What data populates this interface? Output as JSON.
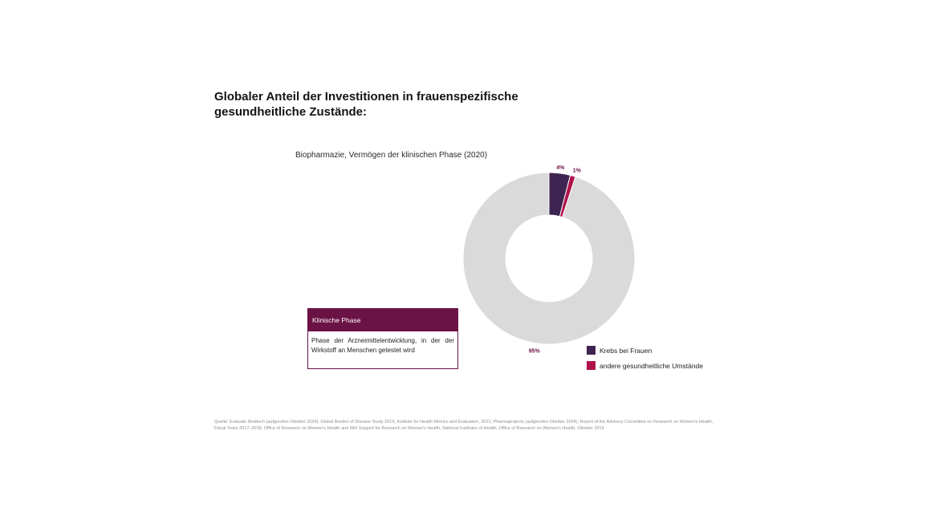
{
  "title": "Globaler Anteil der Investitionen in frauenspezifische gesundheitliche Zustände:",
  "chart_data": {
    "type": "pie",
    "subtitle": "Biopharmazie, Vermögen der klinischen Phase (2020)",
    "donut": true,
    "slices": [
      {
        "label": "Krebs bei Frauen",
        "value": 4,
        "display": "4%",
        "color": "#3e2450",
        "in_legend": true
      },
      {
        "label": "andere gesundheitliche Umstände",
        "value": 1,
        "display": "1%",
        "color": "#b0124c",
        "in_legend": true
      },
      {
        "label": "",
        "value": 95,
        "display": "95%",
        "color": "#dadada",
        "in_legend": false
      }
    ],
    "data_label_color": "#6b1246",
    "legend_position": "bottom-right"
  },
  "info_box": {
    "heading": "Klinische Phase",
    "text": "Phase der Arzneimittelentwicklung, in der der Wirkstoff an Menschen getestet wird",
    "accent": "#6b1246"
  },
  "source": "Quelle: Evaluate Medtech (aufgerufen Oktober 2024); Global Burden of Disease Study 2019, Institute for Health Metrics and Evaluation, 2021; Pharmaprojects (aufgerufen Oktober 2024); Report of the Advisory Committee on Research on Women's Health, Fiscal Years 2017–2018, Office of Research on Women's Health and NIH Support for Research on Women's Health, National Institutes of Health, Office of Research on Women's Health, Oktober 2019"
}
